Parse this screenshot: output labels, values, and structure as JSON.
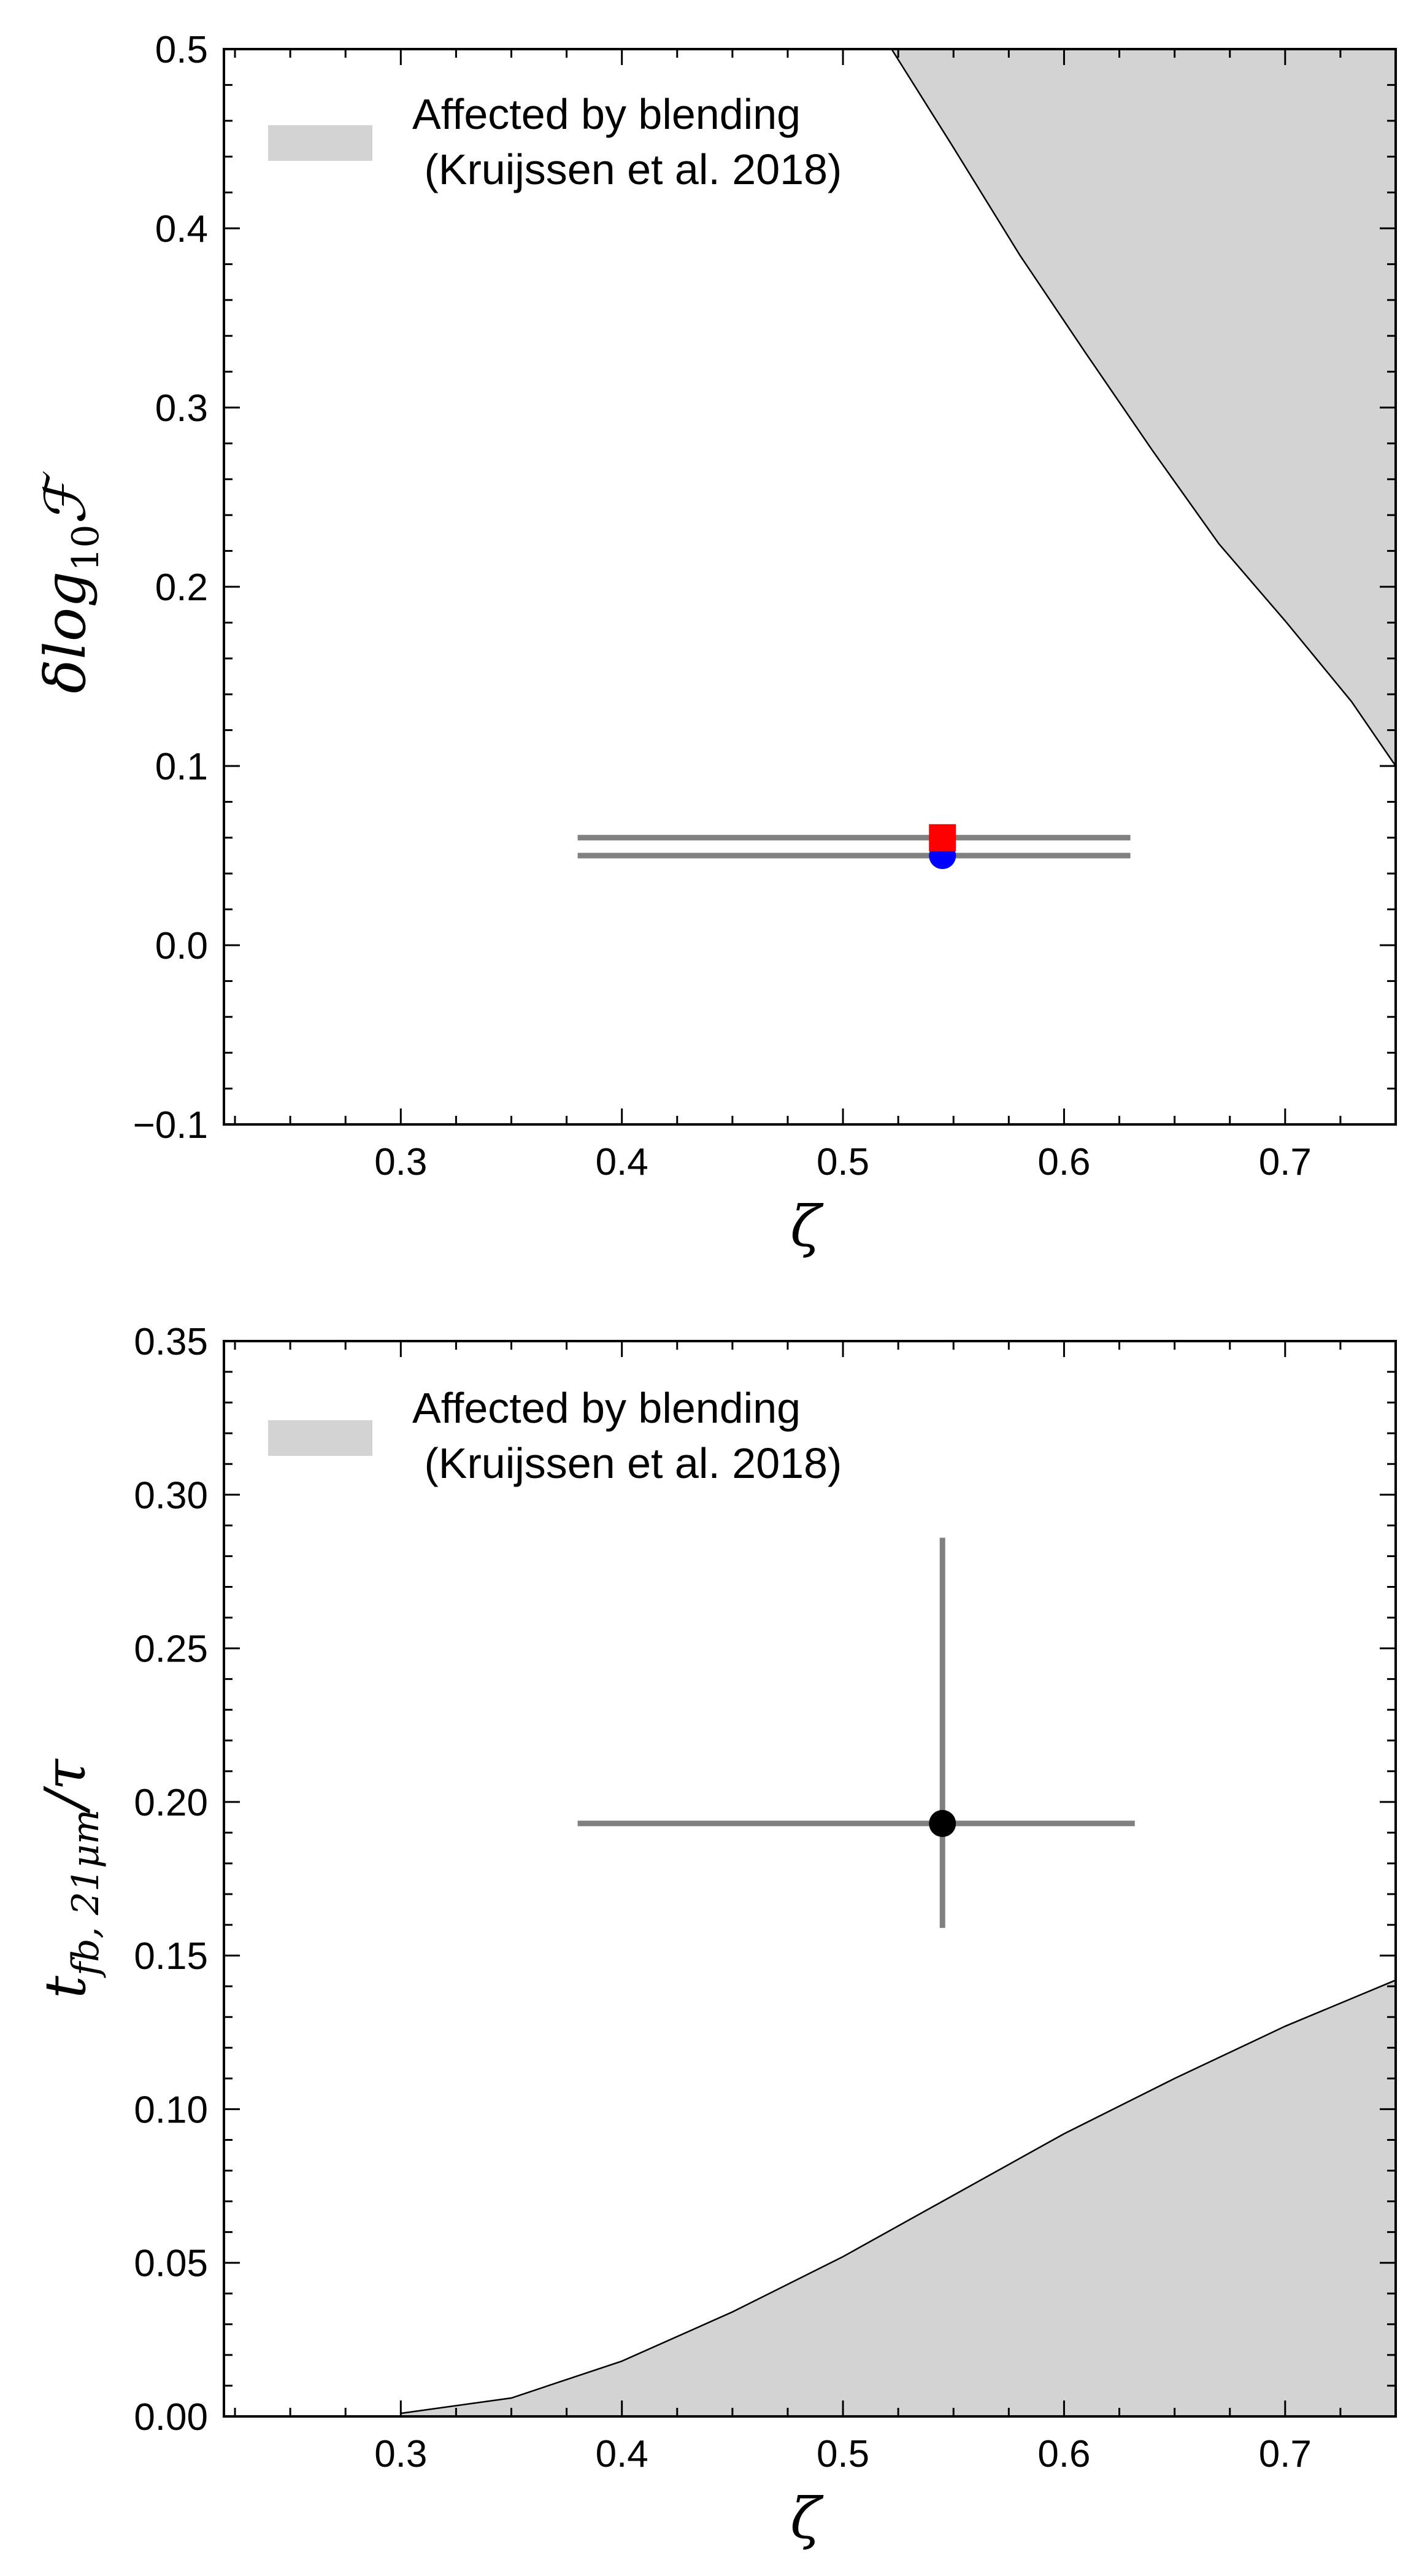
{
  "chart_data": [
    {
      "type": "scatter",
      "xlabel": "ζ",
      "ylabel": {
        "base": "δlog",
        "sub": "10",
        "tail": "ℱ"
      },
      "xlim": [
        0.22,
        0.75
      ],
      "ylim": [
        -0.1,
        0.5
      ],
      "x_major_ticks": [
        0.3,
        0.4,
        0.5,
        0.6,
        0.7
      ],
      "y_major_ticks": [
        -0.1,
        0.0,
        0.1,
        0.2,
        0.3,
        0.4,
        0.5
      ],
      "x_tick_labels": [
        "0.3",
        "0.4",
        "0.5",
        "0.6",
        "0.7"
      ],
      "y_tick_labels": [
        "−0.1",
        "0.0",
        "0.1",
        "0.2",
        "0.3",
        "0.4",
        "0.5"
      ],
      "grid": false,
      "legend": {
        "placement": "upper-left",
        "entries": [
          {
            "label": "Affected by blending",
            "label2": " (Kruijssen et al. 2018)",
            "color": "#d3d3d3"
          }
        ]
      },
      "shaded_region": {
        "label": "Affected by blending (Kruijssen et al. 2018)",
        "color": "#d3d3d3",
        "boundary_x": [
          0.522,
          0.55,
          0.58,
          0.61,
          0.64,
          0.67,
          0.7,
          0.73,
          0.75
        ],
        "boundary_y": [
          0.5,
          0.445,
          0.385,
          0.33,
          0.276,
          0.224,
          0.181,
          0.136,
          0.1
        ],
        "side": "above"
      },
      "series": [
        {
          "marker": "circle",
          "color": "#0000ff",
          "x": 0.545,
          "y": 0.05,
          "xerr": [
            0.165,
            0.085
          ],
          "errcolor": "#808080"
        },
        {
          "marker": "square",
          "color": "#ff0000",
          "x": 0.545,
          "y": 0.06,
          "xerr": [
            0.165,
            0.085
          ],
          "errcolor": "#808080"
        }
      ]
    },
    {
      "type": "scatter",
      "xlabel": "ζ",
      "ylabel": {
        "base": "t",
        "sub": "fb, 21μm",
        "tail": "/τ"
      },
      "xlim": [
        0.22,
        0.75
      ],
      "ylim": [
        0.0,
        0.35
      ],
      "x_major_ticks": [
        0.3,
        0.4,
        0.5,
        0.6,
        0.7
      ],
      "y_major_ticks": [
        0.0,
        0.05,
        0.1,
        0.15,
        0.2,
        0.25,
        0.3,
        0.35
      ],
      "x_tick_labels": [
        "0.3",
        "0.4",
        "0.5",
        "0.6",
        "0.7"
      ],
      "y_tick_labels": [
        "0.00",
        "0.05",
        "0.10",
        "0.15",
        "0.20",
        "0.25",
        "0.30",
        "0.35"
      ],
      "grid": false,
      "legend": {
        "placement": "upper-left",
        "entries": [
          {
            "label": "Affected by blending",
            "label2": " (Kruijssen et al. 2018)",
            "color": "#d3d3d3"
          }
        ]
      },
      "shaded_region": {
        "label": "Affected by blending (Kruijssen et al. 2018)",
        "color": "#d3d3d3",
        "boundary_x": [
          0.3,
          0.35,
          0.4,
          0.45,
          0.5,
          0.55,
          0.6,
          0.65,
          0.7,
          0.75
        ],
        "boundary_y": [
          0.001,
          0.006,
          0.018,
          0.034,
          0.052,
          0.072,
          0.092,
          0.11,
          0.127,
          0.142
        ],
        "side": "below"
      },
      "series": [
        {
          "marker": "circle",
          "color": "#000000",
          "x": 0.545,
          "y": 0.193,
          "xerr": [
            0.165,
            0.087
          ],
          "yerr": [
            0.034,
            0.093
          ],
          "errcolor": "#808080"
        }
      ]
    }
  ]
}
